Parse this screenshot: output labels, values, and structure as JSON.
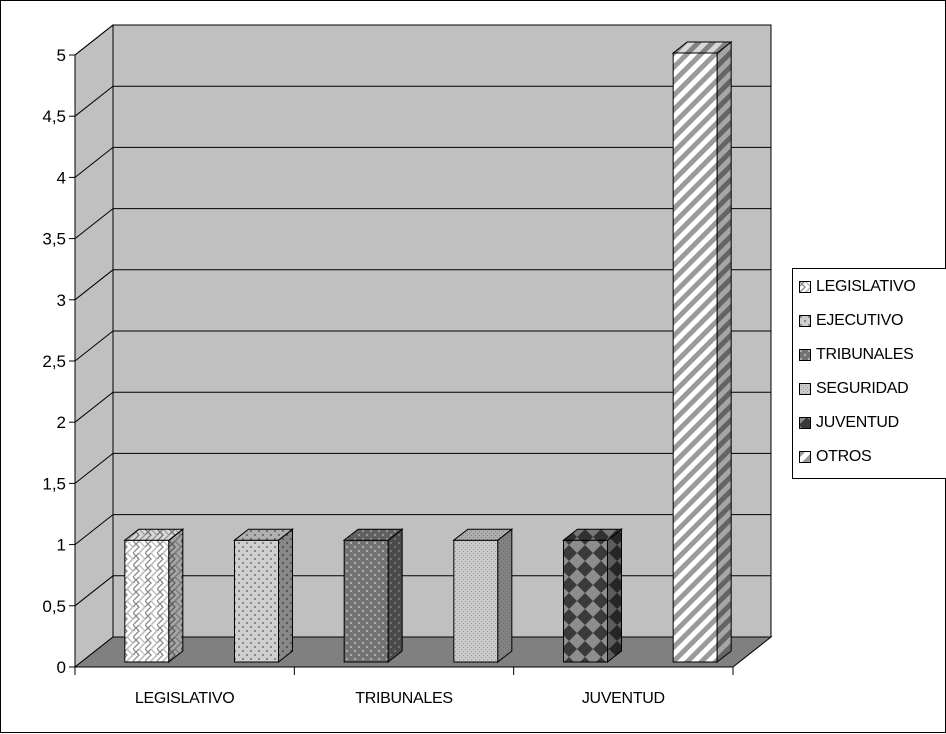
{
  "chart_data": {
    "type": "bar",
    "title": "",
    "xlabel": "",
    "ylabel": "",
    "ylim": [
      0,
      5
    ],
    "y_ticks": [
      "0",
      "0,5",
      "1",
      "1,5",
      "2",
      "2,5",
      "3",
      "3,5",
      "4",
      "4,5",
      "5"
    ],
    "x_tick_labels": [
      "LEGISLATIVO",
      "TRIBUNALES",
      "JUVENTUD"
    ],
    "grid": true,
    "three_d": true,
    "legend_position": "right",
    "series": [
      {
        "name": "LEGISLATIVO",
        "values": [
          1
        ],
        "color": "#e6e6e6",
        "pattern": "weave"
      },
      {
        "name": "EJECUTIVO",
        "values": [
          1
        ],
        "color": "#c8c8c8",
        "pattern": "dots"
      },
      {
        "name": "TRIBUNALES",
        "values": [
          1
        ],
        "color": "#7a7a7a",
        "pattern": "dots-light"
      },
      {
        "name": "SEGURIDAD",
        "values": [
          1
        ],
        "color": "#c4c4c4",
        "pattern": "fine-dots"
      },
      {
        "name": "JUVENTUD",
        "values": [
          1
        ],
        "color": "#555555",
        "pattern": "diamonds"
      },
      {
        "name": "OTROS",
        "values": [
          5
        ],
        "color": "#ffffff",
        "pattern": "diagonal-stripes"
      }
    ]
  },
  "colors": {
    "wall": "#c0c0c0",
    "floor": "#808080",
    "background": "#ffffff"
  }
}
